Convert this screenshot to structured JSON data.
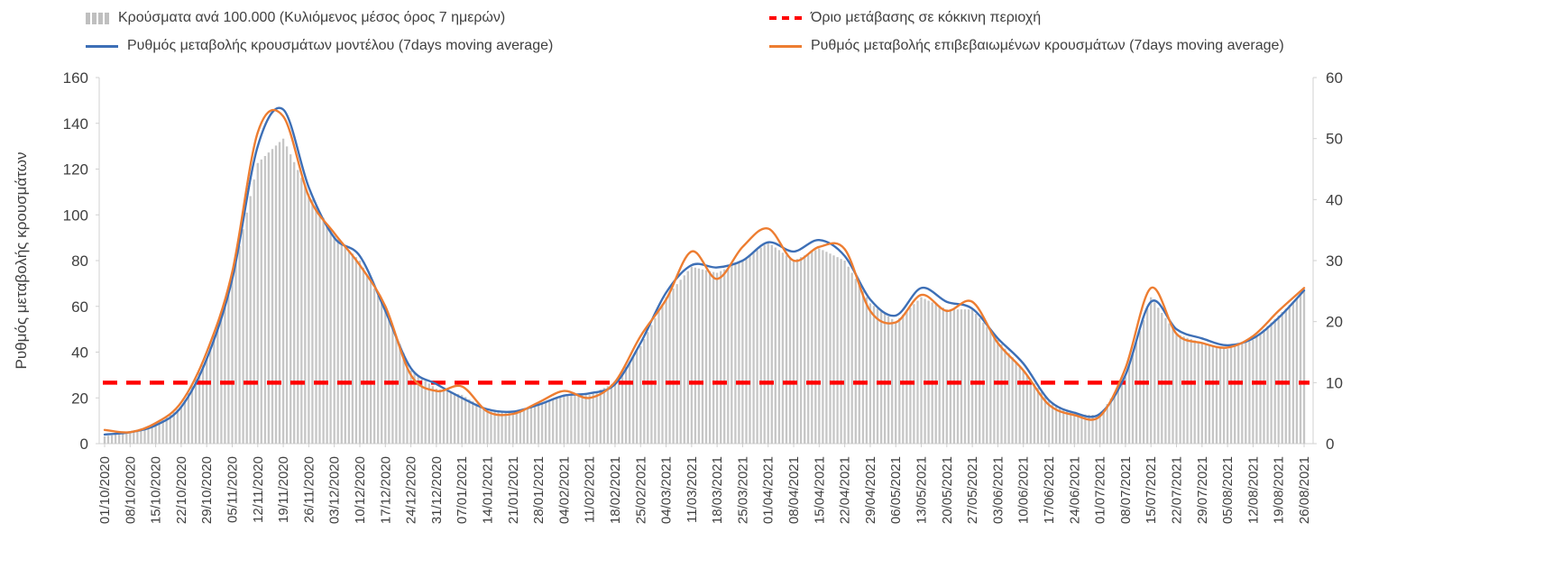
{
  "chart_data": {
    "type": "line",
    "left_axis_title": "Ρυθμός μεταβολής κρουσμάτων",
    "left_ylim": [
      0,
      160
    ],
    "right_ylim": [
      0,
      60
    ],
    "left_ticks": [
      0,
      20,
      40,
      60,
      80,
      100,
      120,
      140,
      160
    ],
    "right_ticks": [
      0,
      10,
      20,
      30,
      40,
      50,
      60
    ],
    "grid": "off",
    "legend_position": "top",
    "categories": [
      "01/10/2020",
      "08/10/2020",
      "15/10/2020",
      "22/10/2020",
      "29/10/2020",
      "05/11/2020",
      "12/11/2020",
      "19/11/2020",
      "26/11/2020",
      "03/12/2020",
      "10/12/2020",
      "17/12/2020",
      "24/12/2020",
      "31/12/2020",
      "07/01/2021",
      "14/01/2021",
      "21/01/2021",
      "28/01/2021",
      "04/02/2021",
      "11/02/2021",
      "18/02/2021",
      "25/02/2021",
      "04/03/2021",
      "11/03/2021",
      "18/03/2021",
      "25/03/2021",
      "01/04/2021",
      "08/04/2021",
      "15/04/2021",
      "22/04/2021",
      "29/04/2021",
      "06/05/2021",
      "13/05/2021",
      "20/05/2021",
      "27/05/2021",
      "03/06/2021",
      "10/06/2021",
      "17/06/2021",
      "24/06/2021",
      "01/07/2021",
      "08/07/2021",
      "15/07/2021",
      "22/07/2021",
      "29/07/2021",
      "05/08/2021",
      "12/08/2021",
      "19/08/2021",
      "26/08/2021"
    ],
    "series": [
      {
        "name": "Κρούσματα ανά 100.000 (Κυλιόμενος μέσος όρος 7 ημερών)",
        "kind": "bar",
        "axis": "right",
        "color": "#c6c6c6",
        "values": [
          1.2,
          1.8,
          3,
          6,
          14,
          27,
          46,
          50,
          41,
          34,
          30,
          22,
          12,
          9,
          8,
          5.5,
          5,
          6.5,
          8,
          8,
          10,
          16,
          24,
          29,
          28,
          30,
          33,
          30,
          32,
          30,
          23,
          20,
          24,
          22,
          22,
          17,
          12,
          7,
          4.8,
          4.7,
          11,
          24,
          18,
          16.5,
          15.5,
          17,
          21,
          25
        ]
      },
      {
        "name": "Όριο μετάβασης σε κόκκινη περιοχή",
        "kind": "dashed-threshold",
        "axis": "right",
        "color": "#ff0000",
        "value": 10
      },
      {
        "name": "Ρυθμός μεταβολής κρουσμάτων μοντέλου (7days moving average)",
        "kind": "line",
        "axis": "left",
        "color": "#3d6fb6",
        "values": [
          4,
          5,
          8,
          16,
          37,
          72,
          130,
          146,
          112,
          90,
          82,
          58,
          33,
          26,
          20,
          15,
          14,
          17,
          21,
          22,
          26,
          44,
          66,
          78,
          77,
          80,
          88,
          84,
          89,
          82,
          63,
          56,
          68,
          62,
          59,
          46,
          35,
          19,
          13.5,
          13,
          30,
          62,
          50,
          46,
          43,
          46,
          55,
          67
        ]
      },
      {
        "name": "Ρυθμός μεταβολής επιβεβαιωμένων κρουσμάτων (7days moving average)",
        "kind": "line",
        "axis": "left",
        "color": "#ed7d31",
        "values": [
          6,
          5,
          9,
          18,
          40,
          75,
          136,
          143,
          108,
          92,
          78,
          60,
          30,
          23,
          25,
          14,
          13,
          18,
          23,
          20,
          27,
          47,
          63,
          84,
          72,
          86,
          94,
          80,
          86,
          85,
          58,
          53,
          65,
          58,
          62,
          44,
          32,
          17,
          12.5,
          12,
          33,
          68,
          48,
          44,
          42,
          47,
          58,
          68
        ]
      }
    ]
  },
  "colors": {
    "axis_line": "#d0d0d0",
    "tick_text": "#404040",
    "bar": "#c6c6c6",
    "blue_line": "#3d6fb6",
    "orange_line": "#ed7d31",
    "threshold_red": "#ff0000"
  }
}
